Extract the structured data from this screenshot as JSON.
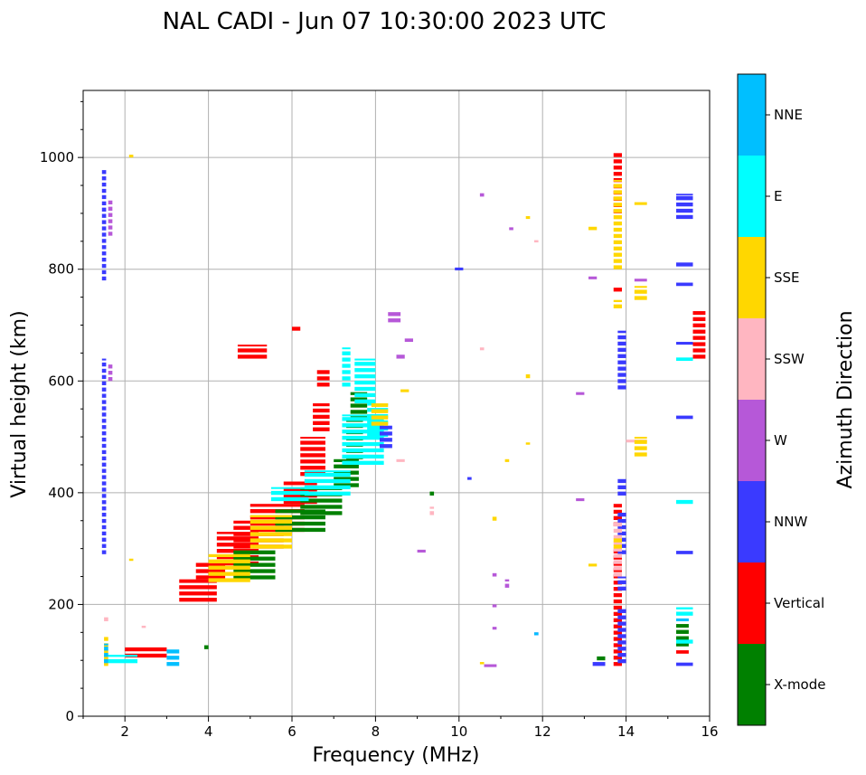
{
  "chart_data": {
    "type": "scatter",
    "title": "NAL CADI - Jun 07 10:30:00 2023 UTC",
    "xlabel": "Frequency (MHz)",
    "ylabel": "Virtual height (km)",
    "xlim": [
      1.0,
      16.0
    ],
    "ylim": [
      0,
      1120
    ],
    "xticks": [
      2,
      4,
      6,
      8,
      10,
      12,
      14,
      16
    ],
    "yticks": [
      0,
      200,
      400,
      600,
      800,
      1000
    ],
    "grid": true,
    "colorbar": {
      "title": "Azimuth Direction",
      "categories": [
        {
          "name": "X-mode",
          "color": "#008000"
        },
        {
          "name": "Vertical",
          "color": "#ff0000"
        },
        {
          "name": "NNW",
          "color": "#3a3aff"
        },
        {
          "name": "W",
          "color": "#b658d8"
        },
        {
          "name": "SSW",
          "color": "#ffb6c1"
        },
        {
          "name": "SSE",
          "color": "#ffd700"
        },
        {
          "name": "E",
          "color": "#00ffff"
        },
        {
          "name": "NNE",
          "color": "#00bfff"
        }
      ]
    },
    "bins": {
      "freq_width": 0.1,
      "height_width": 7
    },
    "series": [
      {
        "name": "Vertical",
        "segments": [
          [
            2.0,
            3.0,
            105,
            125
          ],
          [
            3.3,
            4.2,
            205,
            245
          ],
          [
            3.7,
            4.4,
            245,
            275
          ],
          [
            4.2,
            5.2,
            270,
            330
          ],
          [
            4.6,
            5.8,
            300,
            350
          ],
          [
            5.0,
            6.3,
            330,
            380
          ],
          [
            5.8,
            6.6,
            380,
            420
          ],
          [
            6.2,
            6.8,
            430,
            500
          ],
          [
            6.5,
            6.9,
            510,
            560
          ],
          [
            6.6,
            6.9,
            590,
            620
          ],
          [
            4.7,
            5.4,
            640,
            665
          ],
          [
            6.0,
            6.2,
            690,
            700
          ],
          [
            13.7,
            13.9,
            90,
            300
          ],
          [
            13.7,
            13.9,
            340,
            380
          ],
          [
            13.7,
            13.9,
            760,
            770
          ],
          [
            13.7,
            13.9,
            900,
            1010
          ],
          [
            15.6,
            15.9,
            640,
            725
          ],
          [
            15.2,
            15.5,
            112,
            118
          ]
        ]
      },
      {
        "name": "X-mode",
        "segments": [
          [
            4.6,
            5.6,
            245,
            300
          ],
          [
            5.6,
            6.8,
            330,
            370
          ],
          [
            6.2,
            7.2,
            360,
            410
          ],
          [
            7.0,
            7.6,
            410,
            460
          ],
          [
            7.3,
            7.7,
            460,
            530
          ],
          [
            7.4,
            7.8,
            530,
            580
          ],
          [
            15.2,
            15.5,
            125,
            165
          ],
          [
            13.3,
            13.5,
            100,
            110
          ],
          [
            3.9,
            4.0,
            120,
            128
          ],
          [
            9.3,
            9.4,
            395,
            405
          ]
        ]
      },
      {
        "name": "E",
        "segments": [
          [
            5.5,
            6.4,
            385,
            410
          ],
          [
            6.3,
            7.4,
            395,
            440
          ],
          [
            7.2,
            8.2,
            450,
            540
          ],
          [
            7.8,
            8.3,
            500,
            560
          ],
          [
            7.5,
            8.0,
            560,
            640
          ],
          [
            7.2,
            7.4,
            590,
            660
          ],
          [
            15.2,
            15.6,
            180,
            195
          ],
          [
            15.2,
            15.6,
            380,
            388
          ],
          [
            15.2,
            15.6,
            636,
            642
          ],
          [
            15.2,
            15.6,
            130,
            140
          ],
          [
            1.5,
            2.3,
            95,
            110
          ]
        ]
      },
      {
        "name": "NNW",
        "segments": [
          [
            13.8,
            14.0,
            585,
            690
          ],
          [
            13.8,
            14.0,
            395,
            425
          ],
          [
            13.8,
            14.0,
            290,
            365
          ],
          [
            13.8,
            14.0,
            225,
            250
          ],
          [
            13.8,
            14.0,
            95,
            195
          ],
          [
            13.2,
            13.5,
            90,
            100
          ],
          [
            15.2,
            15.6,
            90,
            96
          ],
          [
            15.2,
            15.6,
            290,
            296
          ],
          [
            15.2,
            15.6,
            532,
            538
          ],
          [
            15.2,
            15.6,
            665,
            670
          ],
          [
            15.2,
            15.6,
            770,
            776
          ],
          [
            15.2,
            15.6,
            805,
            815
          ],
          [
            15.2,
            15.6,
            890,
            935
          ],
          [
            1.45,
            1.55,
            290,
            640
          ],
          [
            1.45,
            1.55,
            780,
            980
          ],
          [
            8.1,
            8.4,
            480,
            520
          ],
          [
            9.9,
            10.1,
            798,
            803
          ],
          [
            10.2,
            10.3,
            423,
            428
          ],
          [
            11.8,
            11.9,
            145,
            150
          ]
        ]
      },
      {
        "name": "W",
        "segments": [
          [
            8.3,
            8.6,
            705,
            725
          ],
          [
            8.5,
            8.7,
            640,
            650
          ],
          [
            8.7,
            8.9,
            670,
            676
          ],
          [
            14.2,
            14.5,
            778,
            783
          ],
          [
            13.1,
            13.3,
            782,
            787
          ],
          [
            12.8,
            13.0,
            575,
            580
          ],
          [
            12.8,
            13.0,
            385,
            390
          ],
          [
            10.6,
            10.9,
            88,
            93
          ],
          [
            10.8,
            10.9,
            195,
            200
          ],
          [
            10.8,
            10.9,
            155,
            160
          ],
          [
            10.8,
            10.9,
            250,
            256
          ],
          [
            11.1,
            11.2,
            230,
            245
          ],
          [
            10.5,
            10.6,
            930,
            936
          ],
          [
            9.0,
            9.2,
            293,
            298
          ],
          [
            11.2,
            11.3,
            870,
            875
          ],
          [
            1.6,
            1.7,
            600,
            630
          ],
          [
            1.6,
            1.7,
            860,
            925
          ]
        ]
      },
      {
        "name": "SSW",
        "segments": [
          [
            9.3,
            9.4,
            360,
            375
          ],
          [
            14.0,
            14.5,
            490,
            495
          ],
          [
            13.7,
            13.9,
            250,
            350
          ],
          [
            8.5,
            8.7,
            455,
            460
          ],
          [
            10.5,
            10.6,
            655,
            660
          ],
          [
            11.8,
            11.9,
            848,
            852
          ],
          [
            1.5,
            1.6,
            170,
            180
          ],
          [
            2.4,
            2.5,
            158,
            162
          ]
        ]
      },
      {
        "name": "SSE",
        "segments": [
          [
            4.0,
            5.0,
            240,
            290
          ],
          [
            5.0,
            6.0,
            300,
            360
          ],
          [
            7.9,
            8.3,
            520,
            560
          ],
          [
            13.7,
            13.9,
            800,
            960
          ],
          [
            13.7,
            13.9,
            730,
            745
          ],
          [
            14.2,
            14.5,
            745,
            770
          ],
          [
            14.2,
            14.5,
            915,
            920
          ],
          [
            14.2,
            14.5,
            465,
            500
          ],
          [
            13.1,
            13.3,
            870,
            876
          ],
          [
            13.1,
            13.3,
            268,
            273
          ],
          [
            11.6,
            11.7,
            605,
            612
          ],
          [
            11.6,
            11.7,
            486,
            490
          ],
          [
            11.6,
            11.7,
            890,
            895
          ],
          [
            11.1,
            11.2,
            455,
            460
          ],
          [
            10.8,
            10.9,
            350,
            358
          ],
          [
            10.5,
            10.6,
            93,
            97
          ],
          [
            8.6,
            8.8,
            580,
            585
          ],
          [
            1.5,
            1.6,
            90,
            145
          ],
          [
            2.1,
            2.2,
            278,
            282
          ],
          [
            2.1,
            2.2,
            1000,
            1005
          ],
          [
            13.7,
            13.9,
            300,
            320
          ]
        ]
      },
      {
        "name": "NNE",
        "segments": [
          [
            3.0,
            3.3,
            90,
            120
          ],
          [
            1.5,
            1.6,
            95,
            130
          ],
          [
            15.2,
            15.5,
            170,
            175
          ],
          [
            11.8,
            11.9,
            145,
            150
          ]
        ]
      }
    ]
  }
}
